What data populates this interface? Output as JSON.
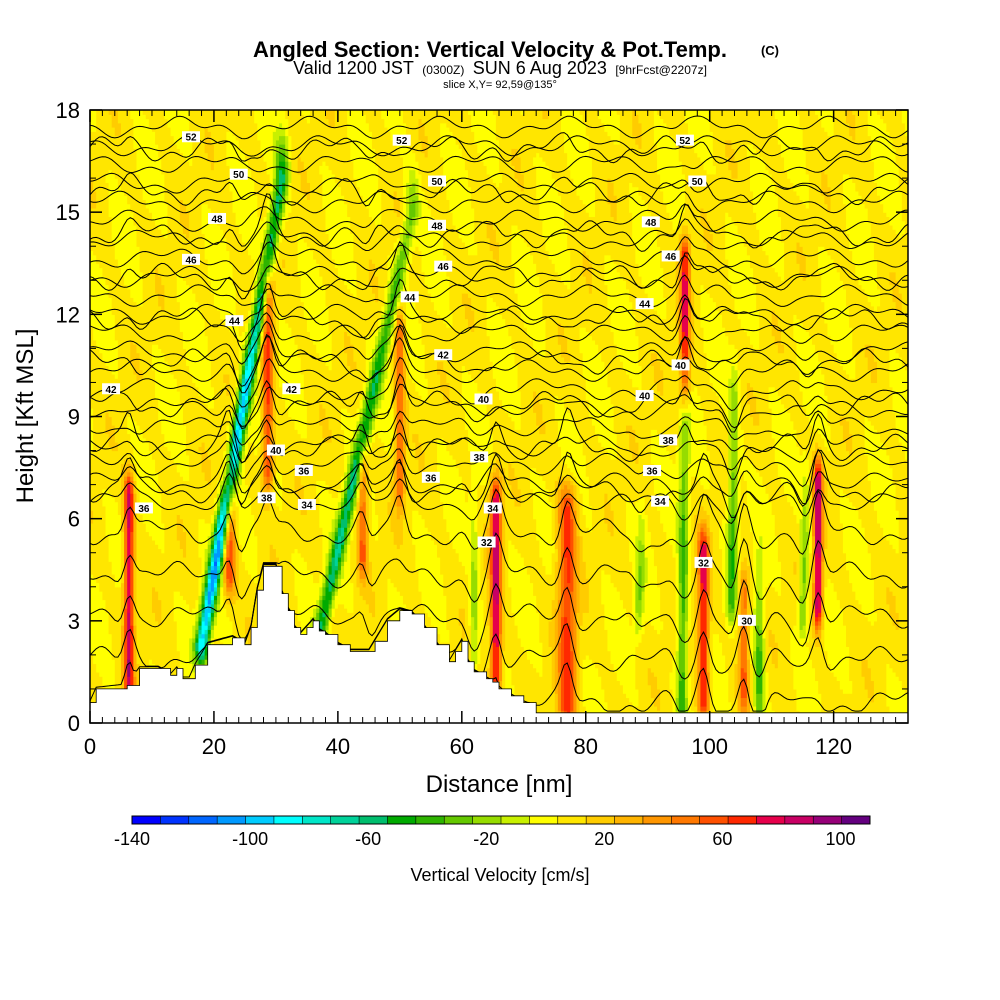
{
  "header": {
    "title": "Angled Section: Vertical Velocity & Pot.Temp.",
    "title_suffix": "(C)",
    "valid_prefix": "Valid 1200 JST",
    "valid_zulu": "(0300Z)",
    "valid_date": "SUN 6 Aug 2023",
    "forecast": "[9hrFcst@2207z]",
    "slice": "slice X,Y= 92,59@135°"
  },
  "chart_data": {
    "type": "heatmap",
    "xlabel": "Distance [nm]",
    "ylabel": "Height [Kft MSL]",
    "xlim": [
      0,
      132
    ],
    "ylim": [
      0,
      18
    ],
    "x_ticks": [
      "0",
      "20",
      "40",
      "60",
      "80",
      "100",
      "120"
    ],
    "y_ticks": [
      "0",
      "3",
      "6",
      "9",
      "12",
      "15",
      "18"
    ],
    "colorbar": {
      "label": "Vertical Velocity [cm/s]",
      "tick_labels": [
        "-140",
        "-100",
        "-60",
        "-20",
        "20",
        "60",
        "100"
      ],
      "range": [
        -140,
        110
      ],
      "step": 10,
      "colors": [
        "#0000ff",
        "#0033ff",
        "#0066ff",
        "#0099ff",
        "#00ccff",
        "#00ffff",
        "#00e6c8",
        "#00d29a",
        "#00be6e",
        "#00aa00",
        "#2eb400",
        "#64c800",
        "#96dc00",
        "#c8f000",
        "#ffff00",
        "#ffe600",
        "#ffcc00",
        "#ffb400",
        "#ff9600",
        "#ff7800",
        "#ff5000",
        "#ff2800",
        "#e6004b",
        "#c80064",
        "#960078",
        "#64007f"
      ]
    },
    "terrain_kft": [
      [
        0,
        0.6
      ],
      [
        1,
        1.0
      ],
      [
        6,
        1.1
      ],
      [
        8,
        1.6
      ],
      [
        11,
        1.6
      ],
      [
        13,
        1.4
      ],
      [
        14,
        1.6
      ],
      [
        15,
        1.3
      ],
      [
        16,
        1.3
      ],
      [
        17,
        1.7
      ],
      [
        19,
        2.3
      ],
      [
        23,
        2.5
      ],
      [
        25,
        2.3
      ],
      [
        26,
        2.8
      ],
      [
        27,
        3.9
      ],
      [
        28,
        4.6
      ],
      [
        30,
        4.6
      ],
      [
        31,
        3.8
      ],
      [
        32,
        3.3
      ],
      [
        33,
        2.8
      ],
      [
        34,
        2.6
      ],
      [
        35,
        2.8
      ],
      [
        36,
        3.0
      ],
      [
        37,
        2.7
      ],
      [
        38,
        2.6
      ],
      [
        40,
        2.3
      ],
      [
        42,
        2.1
      ],
      [
        45,
        2.1
      ],
      [
        46,
        2.4
      ],
      [
        48,
        3.0
      ],
      [
        50,
        3.3
      ],
      [
        52,
        3.2
      ],
      [
        54,
        2.8
      ],
      [
        56,
        2.3
      ],
      [
        58,
        1.8
      ],
      [
        59,
        2.1
      ],
      [
        60,
        2.4
      ],
      [
        61,
        1.8
      ],
      [
        62,
        1.5
      ],
      [
        64,
        1.3
      ],
      [
        65,
        1.2
      ],
      [
        66,
        1.0
      ],
      [
        68,
        0.8
      ],
      [
        70,
        0.6
      ],
      [
        72,
        0.3
      ],
      [
        75,
        0.3
      ],
      [
        132,
        0.3
      ]
    ],
    "updrafts": [
      {
        "x": 6.3,
        "y0": 0.8,
        "y1": 6.6,
        "peak": 80,
        "w": 0.8
      },
      {
        "x": 22.5,
        "y0": 4.5,
        "y1": 7.2,
        "peak": 60,
        "w": 1.0
      },
      {
        "x": 28.7,
        "y0": 7.5,
        "y1": 12.8,
        "peak": 60,
        "w": 0.9
      },
      {
        "x": 44.0,
        "y0": 5.0,
        "y1": 7.5,
        "peak": 50,
        "w": 0.8
      },
      {
        "x": 50.0,
        "y0": 7.0,
        "y1": 11.5,
        "peak": 50,
        "w": 0.8
      },
      {
        "x": 65.5,
        "y0": 1.5,
        "y1": 6.5,
        "peak": 80,
        "w": 0.9
      },
      {
        "x": 77.0,
        "y0": 0.5,
        "y1": 6.3,
        "peak": 60,
        "w": 1.5
      },
      {
        "x": 96.0,
        "y0": 10.0,
        "y1": 13.6,
        "peak": 70,
        "w": 0.8
      },
      {
        "x": 99.0,
        "y0": 0.8,
        "y1": 5.0,
        "peak": 70,
        "w": 0.9
      },
      {
        "x": 105.5,
        "y0": 1.0,
        "y1": 3.8,
        "peak": 50,
        "w": 0.8
      },
      {
        "x": 117.5,
        "y0": 3.5,
        "y1": 7.0,
        "peak": 90,
        "w": 0.7
      }
    ],
    "downdrafts": [
      {
        "x0": 18.0,
        "x1": 31.0,
        "y0": 2.3,
        "y1": 16.0,
        "peak": -120,
        "w": 1.1
      },
      {
        "x0": 37.0,
        "x1": 52.0,
        "y0": 2.6,
        "y1": 15.0,
        "peak": -70,
        "w": 1.1
      },
      {
        "x0": 95.5,
        "x1": 96.0,
        "y0": 0.5,
        "y1": 9.5,
        "peak": -50,
        "w": 0.8
      },
      {
        "x0": 103.5,
        "x1": 104.0,
        "y0": 3.5,
        "y1": 9.5,
        "peak": -50,
        "w": 0.8
      },
      {
        "x0": 108.0,
        "x1": 108.0,
        "y0": 0.5,
        "y1": 4.0,
        "peak": -50,
        "w": 0.8
      },
      {
        "x0": 115.0,
        "x1": 115.5,
        "y0": 3.0,
        "y1": 6.5,
        "peak": -40,
        "w": 0.7
      },
      {
        "x0": 88.5,
        "x1": 89.0,
        "y0": 3.0,
        "y1": 5.5,
        "peak": -30,
        "w": 0.7
      },
      {
        "x0": 62.0,
        "x1": 62.0,
        "y0": 2.0,
        "y1": 6.0,
        "peak": -30,
        "w": 0.7
      }
    ],
    "isentropes_c": [
      30,
      32,
      34,
      36,
      38,
      40,
      42,
      44,
      46,
      48,
      50,
      52
    ],
    "isentrope_labels": [
      {
        "text": "52",
        "x": 16.3,
        "y": 17.2
      },
      {
        "text": "52",
        "x": 50.3,
        "y": 17.1
      },
      {
        "text": "52",
        "x": 96.0,
        "y": 17.1
      },
      {
        "text": "50",
        "x": 24.0,
        "y": 16.1
      },
      {
        "text": "50",
        "x": 56.0,
        "y": 15.9
      },
      {
        "text": "50",
        "x": 98.0,
        "y": 15.9
      },
      {
        "text": "48",
        "x": 20.5,
        "y": 14.8
      },
      {
        "text": "48",
        "x": 56.0,
        "y": 14.6
      },
      {
        "text": "48",
        "x": 90.5,
        "y": 14.7
      },
      {
        "text": "46",
        "x": 16.3,
        "y": 13.6
      },
      {
        "text": "46",
        "x": 57.0,
        "y": 13.4
      },
      {
        "text": "46",
        "x": 93.7,
        "y": 13.7
      },
      {
        "text": "44",
        "x": 23.3,
        "y": 11.8
      },
      {
        "text": "44",
        "x": 51.6,
        "y": 12.5
      },
      {
        "text": "44",
        "x": 89.5,
        "y": 12.3
      },
      {
        "text": "42",
        "x": 3.4,
        "y": 9.8
      },
      {
        "text": "42",
        "x": 32.5,
        "y": 9.8
      },
      {
        "text": "42",
        "x": 57.0,
        "y": 10.8
      },
      {
        "text": "40",
        "x": 30.0,
        "y": 8.0
      },
      {
        "text": "40",
        "x": 63.5,
        "y": 9.5
      },
      {
        "text": "40",
        "x": 89.5,
        "y": 9.6
      },
      {
        "text": "40",
        "x": 95.3,
        "y": 10.5
      },
      {
        "text": "38",
        "x": 28.5,
        "y": 6.6
      },
      {
        "text": "38",
        "x": 62.8,
        "y": 7.8
      },
      {
        "text": "38",
        "x": 93.3,
        "y": 8.3
      },
      {
        "text": "36",
        "x": 8.7,
        "y": 6.3
      },
      {
        "text": "36",
        "x": 34.5,
        "y": 7.4
      },
      {
        "text": "36",
        "x": 55.0,
        "y": 7.2
      },
      {
        "text": "36",
        "x": 90.7,
        "y": 7.4
      },
      {
        "text": "34",
        "x": 35.0,
        "y": 6.4
      },
      {
        "text": "34",
        "x": 65.0,
        "y": 6.3
      },
      {
        "text": "34",
        "x": 92.0,
        "y": 6.5
      },
      {
        "text": "32",
        "x": 64.0,
        "y": 5.3
      },
      {
        "text": "32",
        "x": 99.0,
        "y": 4.7
      },
      {
        "text": "30",
        "x": 106.0,
        "y": 3.0
      }
    ]
  }
}
